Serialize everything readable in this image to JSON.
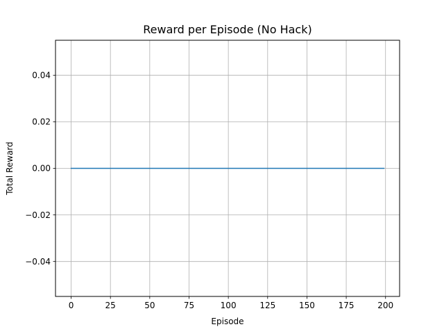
{
  "chart_data": {
    "type": "line",
    "title": "Reward per Episode (No Hack)",
    "xlabel": "Episode",
    "ylabel": "Total Reward",
    "xlim": [
      -9.95,
      208.95
    ],
    "ylim": [
      -0.055,
      0.055
    ],
    "x_ticks": [
      0,
      25,
      50,
      75,
      100,
      125,
      150,
      175,
      200
    ],
    "x_tick_labels": [
      "0",
      "25",
      "50",
      "75",
      "100",
      "125",
      "150",
      "175",
      "200"
    ],
    "y_ticks": [
      -0.04,
      -0.02,
      0.0,
      0.02,
      0.04
    ],
    "y_tick_labels": [
      "−0.04",
      "−0.02",
      "0.00",
      "0.02",
      "0.04"
    ],
    "grid": true,
    "series": [
      {
        "color": "#1f77b4",
        "x_start": 0,
        "x_end": 199,
        "x_step": 1,
        "y_constant": 0.0
      }
    ]
  },
  "colors": {
    "grid": "#b0b0b0",
    "axes": "#000000"
  }
}
